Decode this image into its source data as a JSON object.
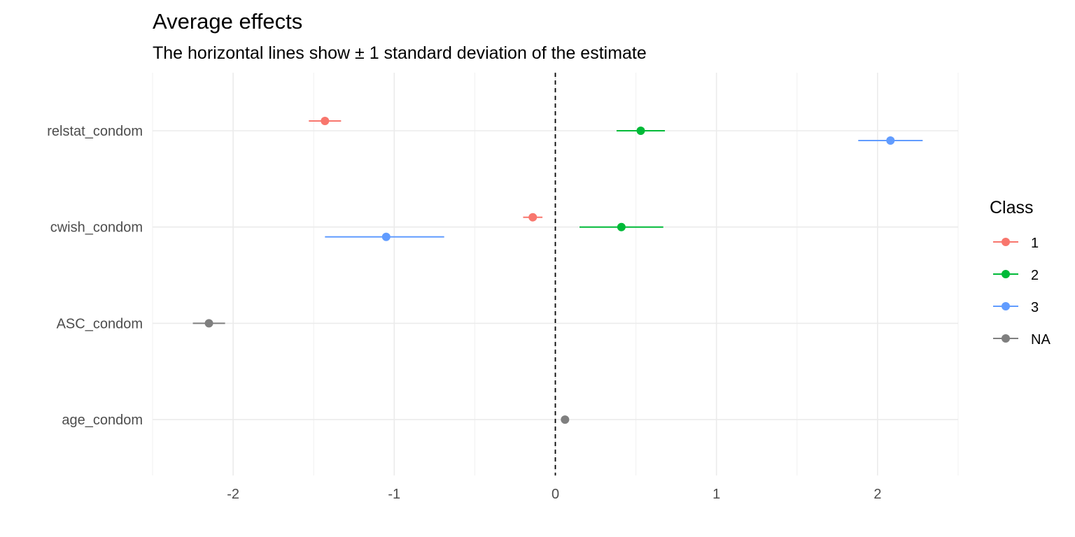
{
  "chart_data": {
    "type": "scatter",
    "title": "Average effects",
    "subtitle": "The horizontal lines show ± 1 standard deviation of the estimate",
    "xlabel": "",
    "ylabel": "",
    "xlim": [
      -2.5,
      2.5
    ],
    "x_ticks": [
      -2,
      -1,
      0,
      1,
      2
    ],
    "x_tick_labels": [
      "-2",
      "-1",
      "0",
      "1",
      "2"
    ],
    "categories": [
      "relstat_condom",
      "cwish_condom",
      "ASC_condom",
      "age_condom"
    ],
    "reference_line": 0,
    "grid": true,
    "legend": {
      "title": "Class",
      "placement": "right",
      "entries": [
        "1",
        "2",
        "3",
        "NA"
      ]
    },
    "series": [
      {
        "name": "1",
        "color": "#F8766D",
        "points": [
          {
            "category": "relstat_condom",
            "x": -1.43,
            "lo": -1.53,
            "hi": -1.33
          },
          {
            "category": "cwish_condom",
            "x": -0.14,
            "lo": -0.2,
            "hi": -0.08
          }
        ]
      },
      {
        "name": "2",
        "color": "#00BA38",
        "points": [
          {
            "category": "relstat_condom",
            "x": 0.53,
            "lo": 0.38,
            "hi": 0.68
          },
          {
            "category": "cwish_condom",
            "x": 0.41,
            "lo": 0.15,
            "hi": 0.67
          }
        ]
      },
      {
        "name": "3",
        "color": "#619CFF",
        "points": [
          {
            "category": "relstat_condom",
            "x": 2.08,
            "lo": 1.88,
            "hi": 2.28
          },
          {
            "category": "cwish_condom",
            "x": -1.05,
            "lo": -1.43,
            "hi": -0.69
          }
        ]
      },
      {
        "name": "NA",
        "color": "#7F7F7F",
        "points": [
          {
            "category": "ASC_condom",
            "x": -2.15,
            "lo": -2.25,
            "hi": -2.05
          },
          {
            "category": "age_condom",
            "x": 0.06,
            "lo": 0.04,
            "hi": 0.08
          }
        ]
      }
    ]
  }
}
